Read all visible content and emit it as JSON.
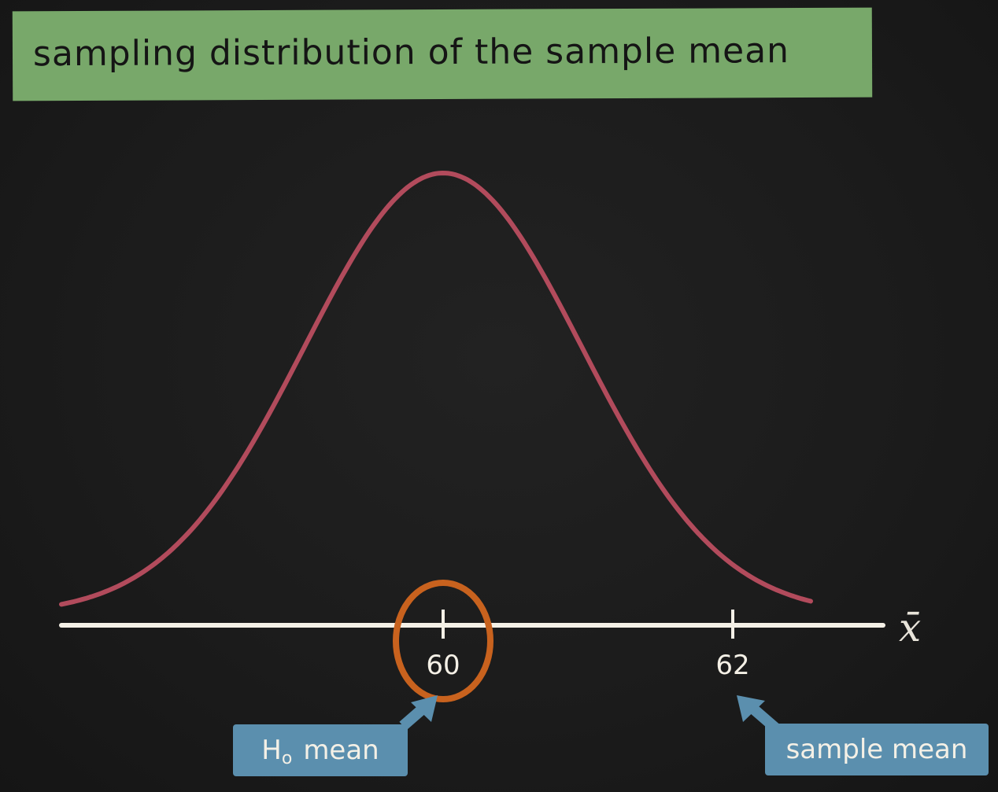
{
  "title": "sampling distribution of the sample mean",
  "axis_symbol": "x̄",
  "colors": {
    "background": "#1b1b1b",
    "title_banner": "#78a86a",
    "curve": "#b24b5c",
    "axis": "#f4f0e6",
    "highlight_circle": "#c8621e",
    "callout": "#5b8fae"
  },
  "chart_data": {
    "type": "line",
    "title": "sampling distribution of the sample mean",
    "xlabel": "x̄",
    "ylabel": "",
    "distribution": "normal",
    "mean": 60,
    "xlim": [
      57.5,
      63
    ],
    "ticks": [
      {
        "value": 60,
        "label": "60"
      },
      {
        "value": 62,
        "label": "62"
      }
    ],
    "highlighted_tick": 60,
    "grid": false
  },
  "callouts": {
    "h0": {
      "label_main": "H",
      "label_sub": "o",
      "label_rest": "mean",
      "points_to": 60
    },
    "sample": {
      "label": "sample mean",
      "points_to": 62
    }
  }
}
